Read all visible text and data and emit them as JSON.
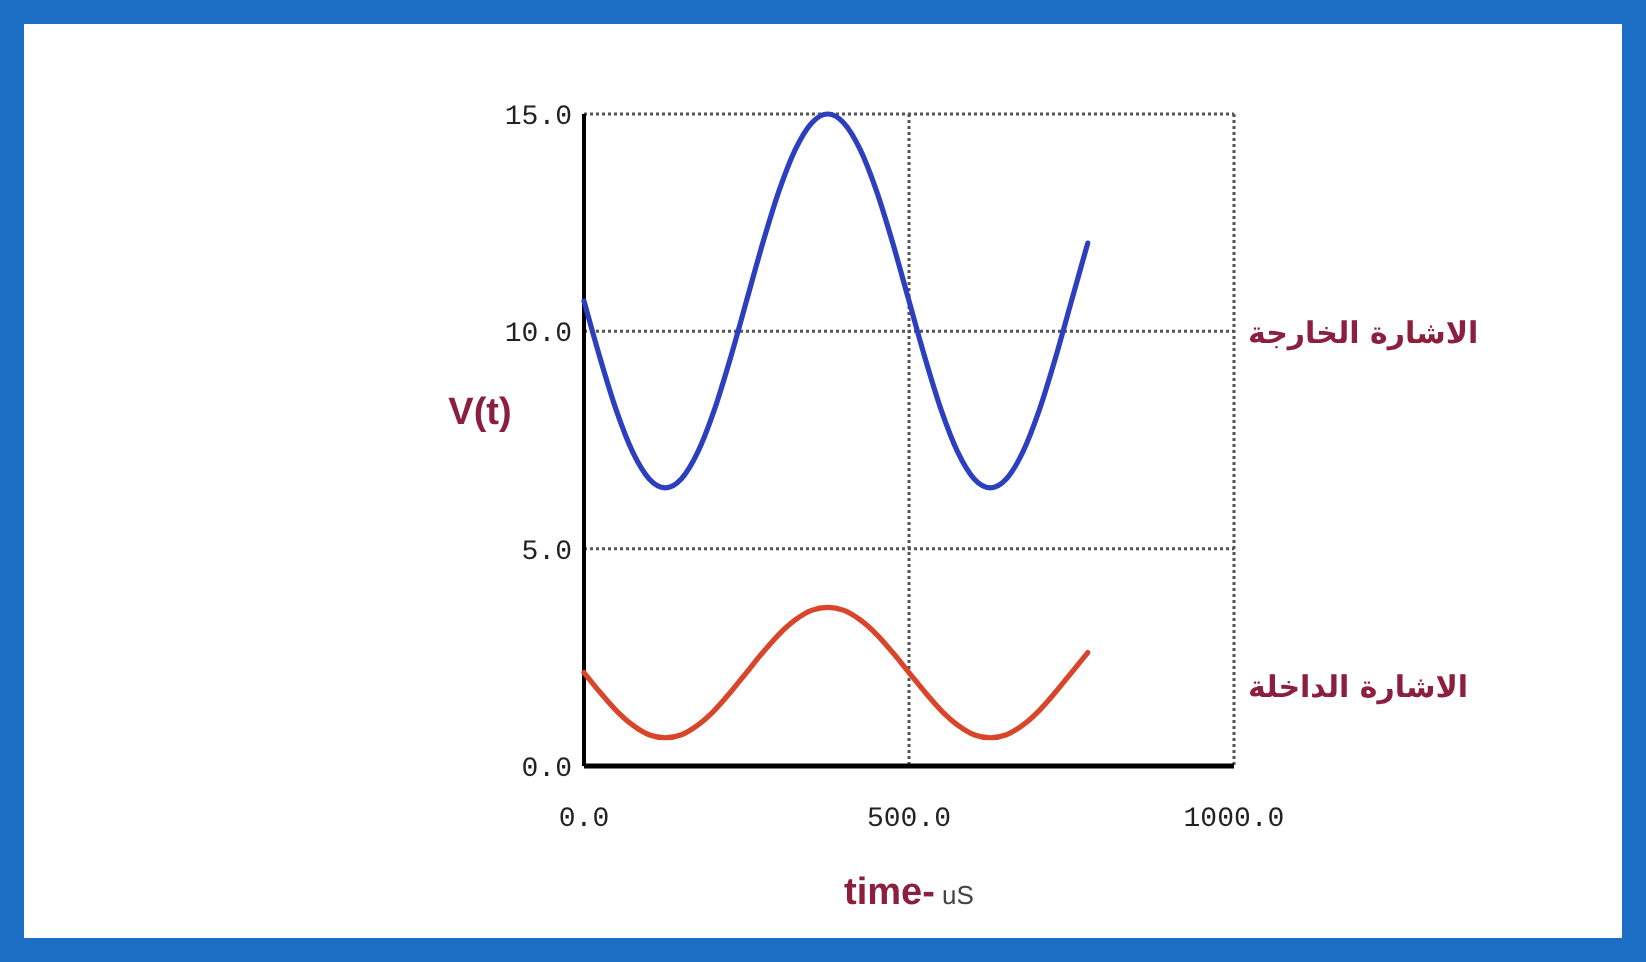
{
  "chart_data": {
    "type": "line",
    "xlabel": "time- uS",
    "ylabel": "V(t)",
    "x": [
      0,
      25,
      50,
      75,
      100,
      125,
      150,
      175,
      200,
      225,
      250,
      275,
      300,
      325,
      350,
      375,
      400,
      425,
      450,
      475,
      500,
      525,
      550,
      575,
      600,
      625,
      650,
      675,
      700,
      725,
      750,
      775
    ],
    "series": [
      {
        "name": "الاشارة الخارجة",
        "color": "#2b3fbf",
        "values": [
          10.7,
          9.37,
          8.17,
          7.22,
          6.61,
          6.4,
          6.61,
          7.22,
          8.17,
          9.37,
          10.7,
          12.03,
          13.23,
          14.18,
          14.79,
          15.0,
          14.79,
          14.18,
          13.23,
          12.03,
          10.7,
          9.37,
          8.17,
          7.22,
          6.61,
          6.4,
          6.61,
          7.22,
          8.17,
          9.37,
          10.7,
          12.03
        ]
      },
      {
        "name": "الاشارة الداخلة",
        "color": "#d9452b",
        "values": [
          2.15,
          1.69,
          1.27,
          0.94,
          0.72,
          0.65,
          0.72,
          0.94,
          1.27,
          1.69,
          2.15,
          2.61,
          3.03,
          3.36,
          3.58,
          3.65,
          3.58,
          3.36,
          3.03,
          2.61,
          2.15,
          1.69,
          1.27,
          0.94,
          0.72,
          0.65,
          0.72,
          0.94,
          1.27,
          1.69,
          2.15,
          2.61
        ]
      }
    ],
    "xlim": [
      0,
      1000
    ],
    "ylim": [
      0,
      15
    ],
    "xticks": [
      {
        "value": 0,
        "label": "0.0"
      },
      {
        "value": 500,
        "label": "500.0"
      },
      {
        "value": 1000,
        "label": "1000.0"
      }
    ],
    "yticks": [
      {
        "value": 0,
        "label": "0.0"
      },
      {
        "value": 5,
        "label": "5.0"
      },
      {
        "value": 10,
        "label": "10.0"
      },
      {
        "value": 15,
        "label": "15.0"
      }
    ],
    "grid": true,
    "line_style": "solid",
    "marker": "none",
    "legend": false
  }
}
